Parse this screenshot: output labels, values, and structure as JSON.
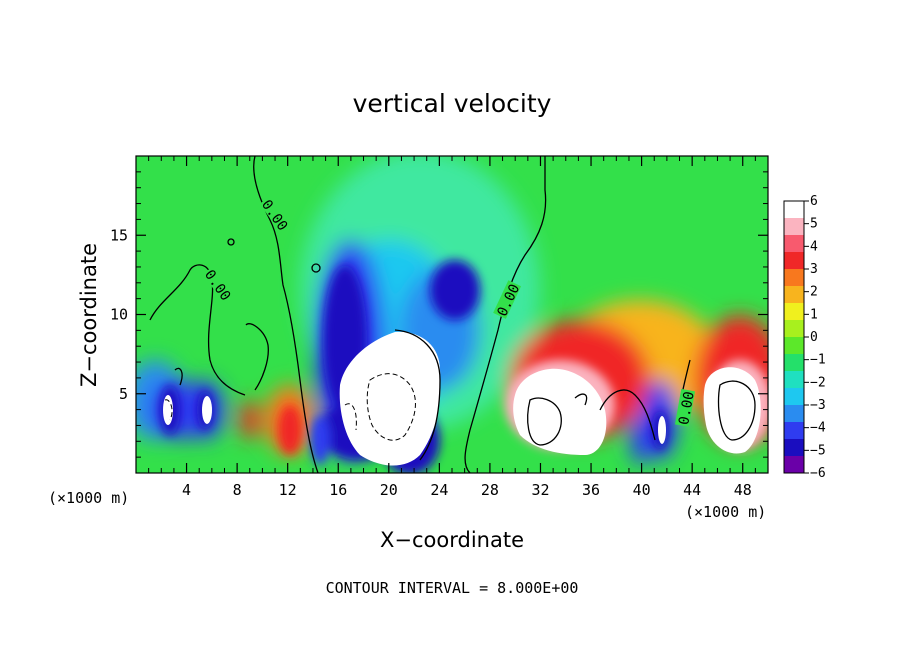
{
  "chart_data": {
    "type": "heatmap",
    "title": "vertical velocity",
    "xlabel": "X−coordinate",
    "ylabel": "Z−coordinate",
    "x_unit_left": "(×1000 m)",
    "x_unit_right": "(×1000 m)",
    "xlim": [
      0,
      50
    ],
    "ylim": [
      0,
      20
    ],
    "xticks": [
      4,
      8,
      12,
      16,
      20,
      24,
      28,
      32,
      36,
      40,
      44,
      48
    ],
    "yticks": [
      5,
      10,
      15
    ],
    "contour_interval_text": "CONTOUR INTERVAL = 8.000E+00",
    "contour_label": "0.00",
    "colorbar": {
      "min": -6,
      "max": 6,
      "ticks": [
        "6",
        "5",
        "4",
        "3",
        "2",
        "1",
        "0",
        "−1",
        "−2",
        "−3",
        "−4",
        "−5",
        "−6"
      ]
    },
    "features": [
      {
        "kind": "downdraft",
        "x": 3.0,
        "z": 4.5,
        "value": -5
      },
      {
        "kind": "downdraft",
        "x": 5.5,
        "z": 4.5,
        "value": -5
      },
      {
        "kind": "updraft",
        "x": 9.5,
        "z": 3.5,
        "value": 3
      },
      {
        "kind": "updraft",
        "x": 12.0,
        "z": 3.0,
        "value": 4
      },
      {
        "kind": "downdraft",
        "x": 14.5,
        "z": 2.5,
        "value": -5
      },
      {
        "kind": "downdraft",
        "x": 17.0,
        "z": 8.5,
        "value": -5
      },
      {
        "kind": "downdraft",
        "x": 19.5,
        "z": 3.0,
        "value": -7
      },
      {
        "kind": "downdraft",
        "x": 22.0,
        "z": 10.0,
        "value": -3
      },
      {
        "kind": "updraft",
        "x": 33.0,
        "z": 5.0,
        "value": 8
      },
      {
        "kind": "updraft",
        "x": 36.0,
        "z": 6.0,
        "value": 5
      },
      {
        "kind": "downdraft",
        "x": 40.5,
        "z": 3.0,
        "value": -5
      },
      {
        "kind": "downdraft",
        "x": 42.0,
        "z": 4.0,
        "value": -4
      },
      {
        "kind": "updraft",
        "x": 46.5,
        "z": 5.0,
        "value": 8
      }
    ]
  },
  "colors": {
    "palette": [
      "#6a00a8",
      "#1a0dbf",
      "#2f3cf0",
      "#2a8cf0",
      "#1ec8f0",
      "#1fe0c0",
      "#24e06a",
      "#5ce82a",
      "#a8f01e",
      "#f0f01e",
      "#f8b41e",
      "#f8781e",
      "#f02828",
      "#f85a6e",
      "#fbb4c0",
      "#ffffff"
    ]
  }
}
